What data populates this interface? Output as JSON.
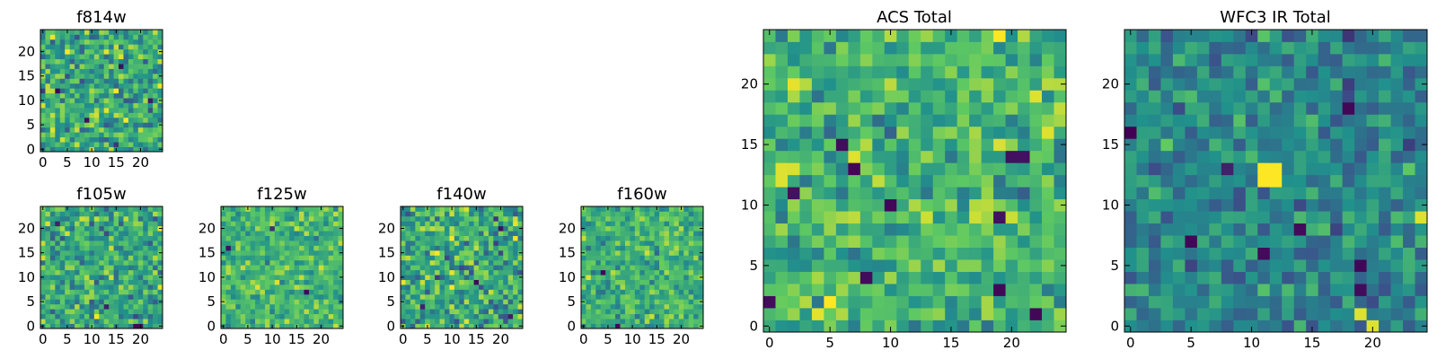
{
  "colormap": {
    "name": "viridis",
    "stops": [
      "#440154",
      "#3b528b",
      "#21918c",
      "#5ec962",
      "#fde725"
    ],
    "frame_color": "#000000"
  },
  "chart_data": [
    {
      "id": "f814w",
      "type": "heatmap",
      "title": "f814w",
      "grid_size": 25,
      "xlim": [
        0,
        24
      ],
      "ylim": [
        0,
        24
      ],
      "xticks": [
        0,
        5,
        10,
        15,
        20
      ],
      "yticks": [
        0,
        5,
        10,
        15,
        20
      ],
      "value_range": [
        0,
        1
      ],
      "seed": 11,
      "noise": 0.2,
      "mean": 0.6,
      "highlights": [
        [
          3,
          12,
          0.02
        ],
        [
          9,
          6,
          0.05
        ],
        [
          16,
          17,
          0.03
        ],
        [
          22,
          10,
          0.08
        ],
        [
          5,
          20,
          1.0
        ]
      ]
    },
    {
      "id": "f105w",
      "type": "heatmap",
      "title": "f105w",
      "grid_size": 25,
      "xlim": [
        0,
        24
      ],
      "ylim": [
        0,
        24
      ],
      "xticks": [
        0,
        5,
        10,
        15,
        20
      ],
      "yticks": [
        0,
        5,
        10,
        15,
        20
      ],
      "value_range": [
        0,
        1
      ],
      "seed": 23,
      "noise": 0.18,
      "mean": 0.6,
      "highlights": [
        [
          19,
          0,
          0.02
        ],
        [
          20,
          0,
          0.03
        ],
        [
          13,
          4,
          0.1
        ],
        [
          3,
          21,
          0.1
        ]
      ]
    },
    {
      "id": "f125w",
      "type": "heatmap",
      "title": "f125w",
      "grid_size": 25,
      "xlim": [
        0,
        24
      ],
      "ylim": [
        0,
        24
      ],
      "xticks": [
        0,
        5,
        10,
        15,
        20
      ],
      "yticks": [
        0,
        5,
        10,
        15,
        20
      ],
      "value_range": [
        0,
        1
      ],
      "seed": 37,
      "noise": 0.14,
      "mean": 0.66,
      "highlights": [
        [
          1,
          16,
          0.05
        ],
        [
          17,
          7,
          0.02
        ],
        [
          10,
          20,
          0.15
        ]
      ]
    },
    {
      "id": "f140w",
      "type": "heatmap",
      "title": "f140w",
      "grid_size": 25,
      "xlim": [
        0,
        24
      ],
      "ylim": [
        0,
        24
      ],
      "xticks": [
        0,
        5,
        10,
        15,
        20
      ],
      "yticks": [
        0,
        5,
        10,
        15,
        20
      ],
      "value_range": [
        0,
        1
      ],
      "seed": 41,
      "noise": 0.2,
      "mean": 0.6,
      "highlights": [
        [
          15,
          9,
          0.02
        ],
        [
          20,
          20,
          0.05
        ],
        [
          4,
          4,
          0.1
        ],
        [
          22,
          2,
          0.1
        ]
      ]
    },
    {
      "id": "f160w",
      "type": "heatmap",
      "title": "f160w",
      "grid_size": 25,
      "xlim": [
        0,
        24
      ],
      "ylim": [
        0,
        24
      ],
      "xticks": [
        0,
        5,
        10,
        15,
        20
      ],
      "yticks": [
        0,
        5,
        10,
        15,
        20
      ],
      "value_range": [
        0,
        1
      ],
      "seed": 53,
      "noise": 0.14,
      "mean": 0.64,
      "highlights": [
        [
          4,
          11,
          0.02
        ],
        [
          7,
          0,
          0.02
        ],
        [
          1,
          10,
          0.95
        ]
      ]
    },
    {
      "id": "acs-total",
      "type": "heatmap",
      "title": "ACS Total",
      "grid_size": 25,
      "xlim": [
        0,
        24
      ],
      "ylim": [
        0,
        24
      ],
      "xticks": [
        0,
        5,
        10,
        15,
        20
      ],
      "yticks": [
        0,
        5,
        10,
        15,
        20
      ],
      "value_range": [
        0,
        1
      ],
      "seed": 67,
      "noise": 0.16,
      "mean": 0.66,
      "highlights": [
        [
          6,
          15,
          0.03
        ],
        [
          7,
          13,
          0.02
        ],
        [
          10,
          10,
          0.02
        ],
        [
          19,
          3,
          0.02
        ],
        [
          22,
          1,
          0.02
        ],
        [
          0,
          2,
          0.03
        ],
        [
          8,
          4,
          0.03
        ],
        [
          20,
          14,
          0.05
        ],
        [
          21,
          14,
          0.05
        ],
        [
          19,
          9,
          0.05
        ],
        [
          1,
          13,
          0.95
        ],
        [
          1,
          12,
          0.95
        ],
        [
          7,
          14,
          0.95
        ],
        [
          2,
          11,
          0.05
        ],
        [
          23,
          16,
          0.95
        ],
        [
          22,
          19,
          0.95
        ]
      ]
    },
    {
      "id": "wfc3-ir-total",
      "type": "heatmap",
      "title": "WFC3 IR Total",
      "grid_size": 25,
      "xlim": [
        0,
        24
      ],
      "ylim": [
        0,
        24
      ],
      "xticks": [
        0,
        5,
        10,
        15,
        20
      ],
      "yticks": [
        0,
        5,
        10,
        15,
        20
      ],
      "value_range": [
        0,
        1
      ],
      "seed": 79,
      "noise": 0.14,
      "mean": 0.46,
      "highlights": [
        [
          11,
          13,
          1.0
        ],
        [
          12,
          13,
          1.0
        ],
        [
          11,
          12,
          1.0
        ],
        [
          12,
          12,
          1.0
        ],
        [
          0,
          16,
          0.0
        ],
        [
          18,
          18,
          0.02
        ],
        [
          14,
          8,
          0.03
        ],
        [
          5,
          7,
          0.02
        ],
        [
          11,
          6,
          0.03
        ],
        [
          19,
          5,
          0.02
        ],
        [
          19,
          3,
          0.03
        ],
        [
          19,
          1,
          0.95
        ],
        [
          20,
          0,
          0.95
        ],
        [
          24,
          9,
          0.95
        ],
        [
          8,
          13,
          0.1
        ]
      ]
    }
  ]
}
